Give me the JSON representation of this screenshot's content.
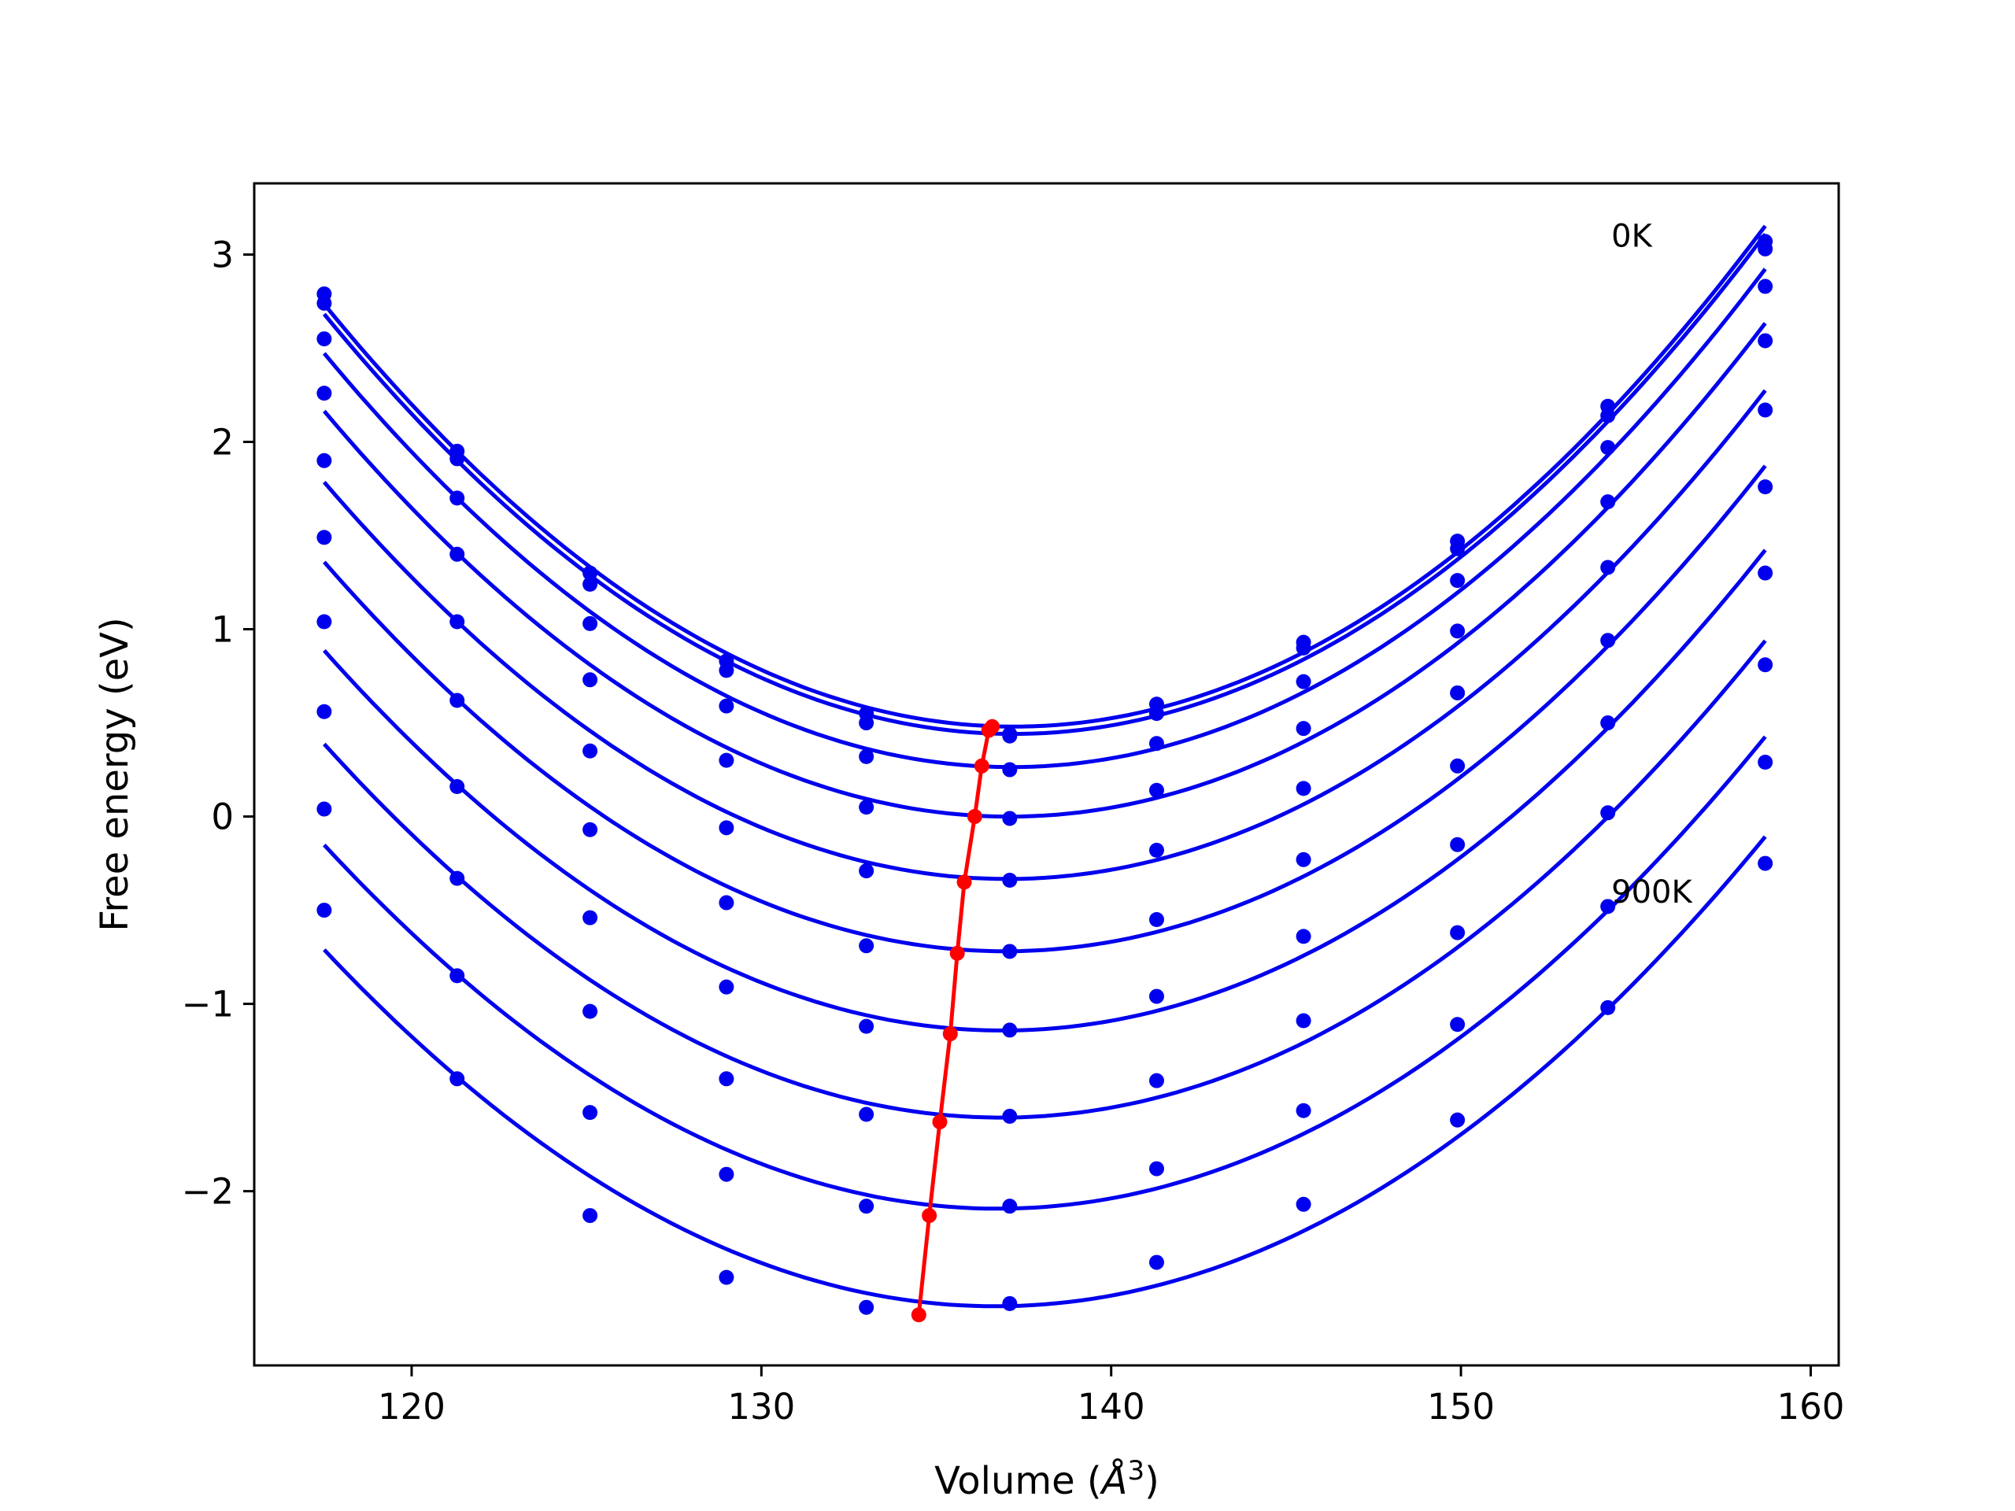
{
  "chart_data": {
    "type": "line",
    "title": "",
    "xlabel": "Volume (",
    "xlabel_symbol": "Å",
    "xlabel_exp": "3",
    "xlabel_close": ")",
    "ylabel": "Free energy (eV)",
    "xlim": [
      115.5,
      160.8
    ],
    "ylim": [
      -2.93,
      3.38
    ],
    "xticks": [
      120,
      130,
      140,
      150,
      160
    ],
    "yticks": [
      -2,
      -1,
      0,
      1,
      2,
      3
    ],
    "xtick_labels": [
      "120",
      "130",
      "140",
      "150",
      "160"
    ],
    "ytick_labels": [
      "−2",
      "−1",
      "0",
      "1",
      "2",
      "3"
    ],
    "grid": false,
    "legend": "none",
    "colors": {
      "curves": "#0000ee",
      "minima": "#ff0000"
    },
    "annotations": [
      {
        "text": "0K",
        "x": 154.3,
        "y": 3.1
      },
      {
        "text": "900K",
        "x": 154.3,
        "y": -0.4
      }
    ],
    "x": [
      117.5,
      121.3,
      125.1,
      129.0,
      133.0,
      137.1,
      141.3,
      145.5,
      149.9,
      154.2,
      158.7
    ],
    "series": [
      {
        "values": [
          2.79,
          1.95,
          1.3,
          0.83,
          0.55,
          0.44,
          0.6,
          0.93,
          1.47,
          2.19,
          3.07
        ]
      },
      {
        "values": [
          2.74,
          1.91,
          1.24,
          0.78,
          0.5,
          0.43,
          0.55,
          0.9,
          1.43,
          2.14,
          3.03
        ]
      },
      {
        "values": [
          2.55,
          1.7,
          1.03,
          0.59,
          0.32,
          0.25,
          0.39,
          0.72,
          1.26,
          1.97,
          2.83
        ]
      },
      {
        "values": [
          2.26,
          1.4,
          0.73,
          0.3,
          0.05,
          -0.01,
          0.14,
          0.47,
          0.99,
          1.68,
          2.54
        ]
      },
      {
        "values": [
          1.9,
          1.04,
          0.35,
          -0.06,
          -0.29,
          -0.34,
          -0.18,
          0.15,
          0.66,
          1.33,
          2.17
        ]
      },
      {
        "values": [
          1.49,
          0.62,
          -0.07,
          -0.46,
          -0.69,
          -0.72,
          -0.55,
          -0.23,
          0.27,
          0.94,
          1.76
        ]
      },
      {
        "values": [
          1.04,
          0.16,
          -0.54,
          -0.91,
          -1.12,
          -1.14,
          -0.96,
          -0.64,
          -0.15,
          0.5,
          1.3
        ]
      },
      {
        "values": [
          0.56,
          -0.33,
          -1.04,
          -1.4,
          -1.59,
          -1.6,
          -1.41,
          -1.09,
          -0.62,
          0.02,
          0.81
        ]
      },
      {
        "values": [
          0.04,
          -0.85,
          -1.58,
          -1.91,
          -2.08,
          -2.08,
          -1.88,
          -1.57,
          -1.11,
          -0.48,
          0.29
        ]
      },
      {
        "values": [
          -0.5,
          -1.4,
          -2.13,
          -2.46,
          -2.62,
          -2.6,
          -2.38,
          -2.07,
          -1.62,
          -1.02,
          -0.25
        ]
      }
    ],
    "minima": {
      "x": [
        136.6,
        136.5,
        136.3,
        136.1,
        135.8,
        135.6,
        135.4,
        135.1,
        134.8,
        134.5
      ],
      "y": [
        0.48,
        0.46,
        0.27,
        0.0,
        -0.35,
        -0.73,
        -1.16,
        -1.63,
        -2.13,
        -2.66
      ]
    }
  }
}
